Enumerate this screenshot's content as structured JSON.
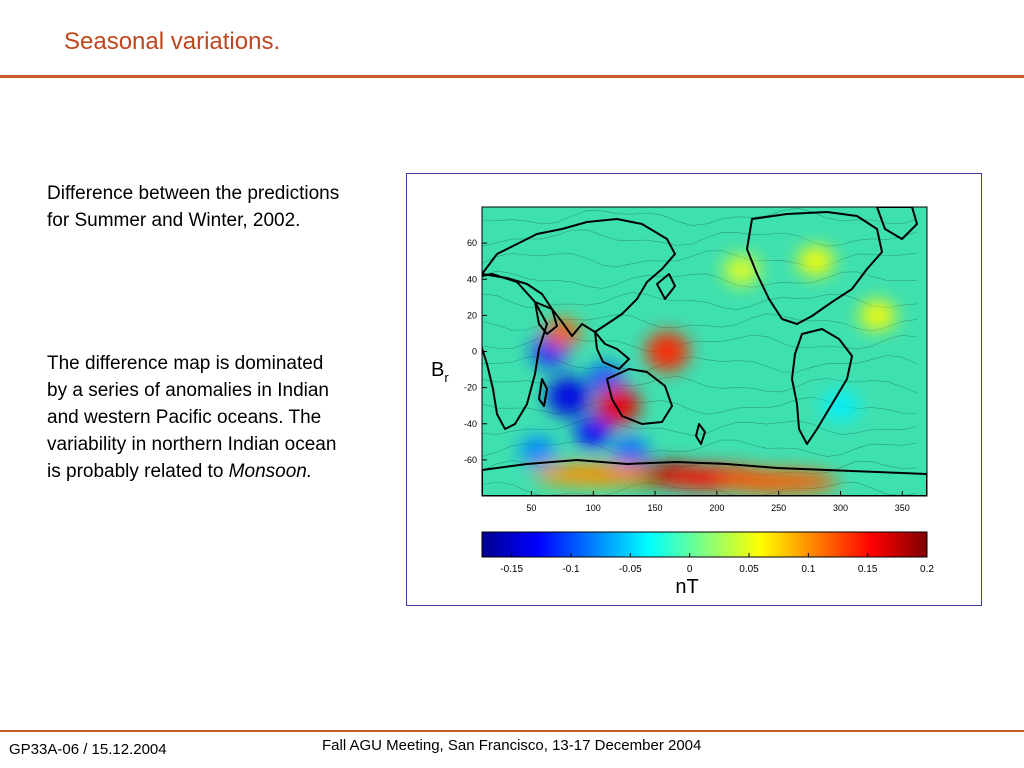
{
  "slide": {
    "title": "Seasonal variations.",
    "paragraph1": "Difference between the predictions for Summer and Winter, 2002.",
    "paragraph2_text": "The difference map is dominated by a series of anomalies in Indian and western Pacific oceans. The variability in northern Indian ocean is probably related to",
    "paragraph2_emphasis": "Monsoon."
  },
  "footer": {
    "left": "GP33A-06 / 15.12.2004",
    "center": "Fall AGU Meeting, San Francisco, 13-17 December 2004"
  },
  "map": {
    "variable_label": "B",
    "variable_subscript": "r",
    "x_ticks": [
      "50",
      "100",
      "150",
      "200",
      "250",
      "300",
      "350"
    ],
    "x_tick_values": [
      50,
      100,
      150,
      200,
      250,
      300,
      350
    ],
    "x_range": [
      10,
      370
    ],
    "y_ticks": [
      "60",
      "40",
      "20",
      "0",
      "-20",
      "-40",
      "-60"
    ],
    "y_tick_values": [
      60,
      40,
      20,
      0,
      -20,
      -40,
      -60
    ],
    "y_range": [
      -80,
      80
    ],
    "background_color": "#3fe0b0",
    "coastline_color": "#000000",
    "anomalies": [
      {
        "lon": 65,
        "lat": 0,
        "value": -0.12
      },
      {
        "lon": 80,
        "lat": -25,
        "value": -0.14
      },
      {
        "lon": 100,
        "lat": -45,
        "value": -0.13
      },
      {
        "lon": 110,
        "lat": -15,
        "value": -0.1
      },
      {
        "lon": 55,
        "lat": -55,
        "value": -0.08
      },
      {
        "lon": 130,
        "lat": -55,
        "value": -0.09
      },
      {
        "lon": 120,
        "lat": -30,
        "value": 0.16
      },
      {
        "lon": 160,
        "lat": 0,
        "value": 0.14
      },
      {
        "lon": 75,
        "lat": 10,
        "value": 0.12
      },
      {
        "lon": 150,
        "lat": -68,
        "value": 0.2
      },
      {
        "lon": 200,
        "lat": -70,
        "value": 0.15
      },
      {
        "lon": 250,
        "lat": -72,
        "value": 0.12
      },
      {
        "lon": 100,
        "lat": -68,
        "value": 0.1
      },
      {
        "lon": 220,
        "lat": 45,
        "value": 0.05
      },
      {
        "lon": 330,
        "lat": 20,
        "value": 0.06
      },
      {
        "lon": 300,
        "lat": -30,
        "value": -0.04
      },
      {
        "lon": 280,
        "lat": 50,
        "value": 0.06
      }
    ]
  },
  "colorbar": {
    "unit": "nT",
    "ticks": [
      "-0.15",
      "-0.1",
      "-0.05",
      "0",
      "0.05",
      "0.1",
      "0.15",
      "0.2"
    ],
    "tick_values": [
      -0.15,
      -0.1,
      -0.05,
      0,
      0.05,
      0.1,
      0.15,
      0.2
    ],
    "range": [
      -0.175,
      0.2
    ],
    "colormap": [
      "#00008f",
      "#0000ff",
      "#0080ff",
      "#00ffff",
      "#80ff80",
      "#ffff00",
      "#ff8000",
      "#ff0000",
      "#800000"
    ]
  }
}
